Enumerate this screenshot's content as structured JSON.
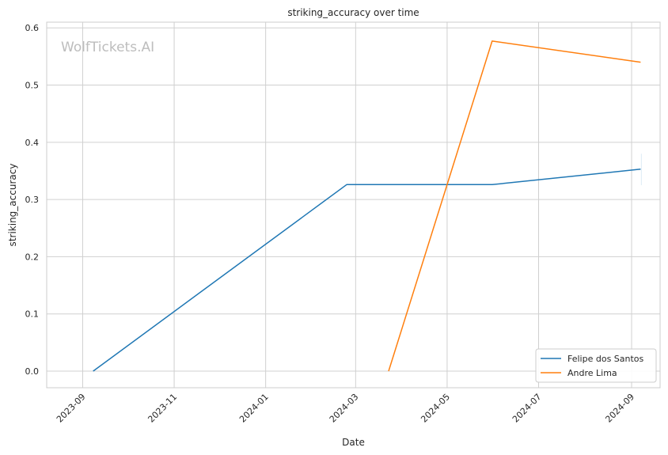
{
  "chart_data": {
    "type": "line",
    "title": "striking_accuracy over time",
    "xlabel": "Date",
    "ylabel": "striking_accuracy",
    "watermark": "WolfTickets.AI",
    "grid": true,
    "legend_position": "bottom-right",
    "xlim": [
      "2023-08-08",
      "2024-09-20"
    ],
    "ylim": [
      -0.029,
      0.61
    ],
    "x_ticks": [
      "2023-09",
      "2023-11",
      "2024-01",
      "2024-03",
      "2024-05",
      "2024-07",
      "2024-09"
    ],
    "y_ticks": [
      "0.0",
      "0.1",
      "0.2",
      "0.3",
      "0.4",
      "0.5",
      "0.6"
    ],
    "series": [
      {
        "name": "Felipe dos Santos",
        "color": "#1f77b4",
        "points": [
          {
            "x": "2023-09-08",
            "y": 0.0
          },
          {
            "x": "2024-02-24",
            "y": 0.326
          },
          {
            "x": "2024-05-31",
            "y": 0.326
          },
          {
            "x": "2024-09-07",
            "y": 0.353
          }
        ]
      },
      {
        "name": "Andre Lima",
        "color": "#ff7f0e",
        "points": [
          {
            "x": "2024-03-23",
            "y": 0.0
          },
          {
            "x": "2024-05-31",
            "y": 0.577
          },
          {
            "x": "2024-09-07",
            "y": 0.54
          }
        ]
      }
    ]
  }
}
